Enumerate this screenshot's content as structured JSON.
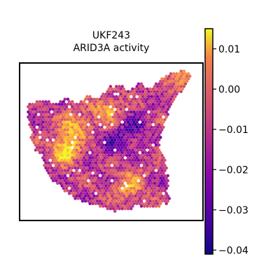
{
  "chart_data": {
    "type": "heatmap",
    "title_line1": "UKF243",
    "title_line2": "ARID3A activity",
    "xlabel": "",
    "ylabel": "",
    "colormap": "plasma",
    "colorbar": {
      "vmin": -0.041,
      "vmax": 0.015,
      "ticks": [
        {
          "value": 0.01,
          "label": "0.01"
        },
        {
          "value": 0.0,
          "label": "0.00"
        },
        {
          "value": -0.01,
          "label": "−0.01"
        },
        {
          "value": -0.02,
          "label": "−0.02"
        },
        {
          "value": -0.03,
          "label": "−0.03"
        },
        {
          "value": -0.04,
          "label": "−0.04"
        }
      ]
    },
    "hotspots": [
      {
        "x": 0.25,
        "y": 0.55,
        "value": 0.013
      },
      {
        "x": 0.3,
        "y": 0.4,
        "value": 0.004
      },
      {
        "x": 0.47,
        "y": 0.3,
        "value": 0.003
      },
      {
        "x": 0.6,
        "y": 0.78,
        "value": 0.004
      },
      {
        "x": 0.9,
        "y": 0.1,
        "value": 0.003
      },
      {
        "x": 0.52,
        "y": 0.52,
        "value": -0.03
      },
      {
        "x": 0.62,
        "y": 0.42,
        "value": -0.03
      }
    ],
    "grid": false,
    "legend": "colorbar-right"
  }
}
